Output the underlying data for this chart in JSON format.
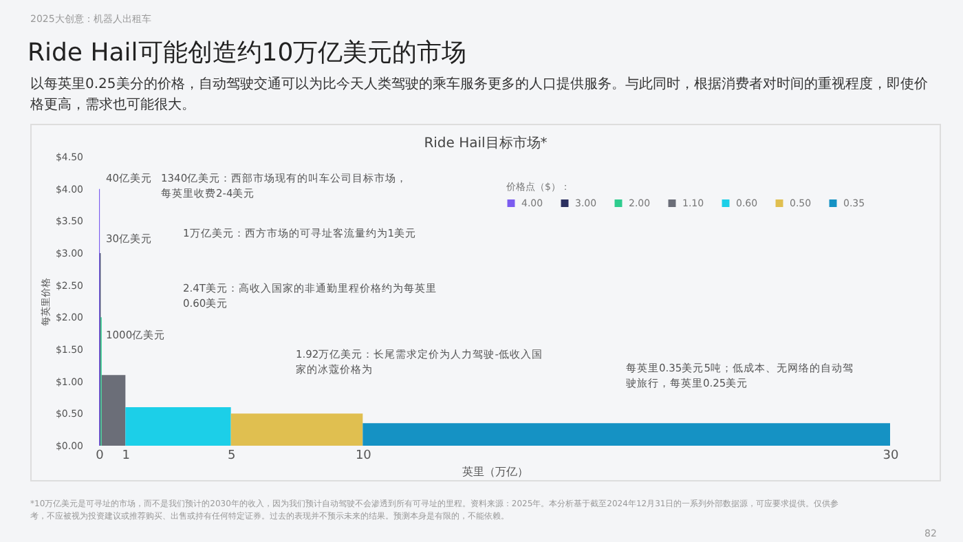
{
  "chart_data": {
    "type": "area",
    "title": "Ride Hail可能创造约10万亿美元的市场",
    "subtitle": "以每英里0.25美分的价格，自动驾驶交通可以为比今天人类驾驶的乘车服务更多的人口提供服务。与此同时，根据消费者对时间的重视程度，即使价格更高，需求也可能很大。",
    "xlabel": "英里（万亿）",
    "ylabel": "每英里价格",
    "legend_title": "价格点（$）：",
    "legend": "top right",
    "grid": false,
    "xlim": [
      0,
      30
    ],
    "xticks": [
      0,
      1,
      5,
      10,
      30
    ],
    "ylim": [
      0,
      4.5
    ],
    "yticks": [
      {
        "value": 0,
        "label": "$0.00"
      },
      {
        "value": 0.5,
        "label": "$0.50"
      },
      {
        "value": 1,
        "label": "$1.00"
      },
      {
        "value": 1.5,
        "label": "$1.50"
      },
      {
        "value": 2,
        "label": "$2.00"
      },
      {
        "value": 2.5,
        "label": "$2.50"
      },
      {
        "value": 3,
        "label": "$3.00"
      },
      {
        "value": 3.5,
        "label": "$3.50"
      },
      {
        "value": 4,
        "label": "$4.00"
      },
      {
        "value": 4.5,
        "label": "$4.50"
      }
    ],
    "series": [
      {
        "name": "4.00",
        "color": "#7b5cf0",
        "x": [
          0,
          0.03
        ],
        "values": [
          4,
          4
        ]
      },
      {
        "name": "3.00",
        "color": "#2b3060",
        "x": [
          0.03,
          0.06
        ],
        "values": [
          3,
          3
        ]
      },
      {
        "name": "2.00",
        "color": "#2ecc8e",
        "x": [
          0.06,
          0.1
        ],
        "values": [
          2,
          2
        ]
      },
      {
        "name": "1.10",
        "color": "#6b6e78",
        "x": [
          0.1,
          1
        ],
        "values": [
          1.1,
          1.1
        ]
      },
      {
        "name": "0.60",
        "color": "#1ccfe8",
        "x": [
          1,
          5
        ],
        "values": [
          0.6,
          0.6
        ]
      },
      {
        "name": "0.50",
        "color": "#e0bf50",
        "x": [
          5,
          10
        ],
        "values": [
          0.5,
          0.5
        ]
      },
      {
        "name": "0.35",
        "color": "#1592c4",
        "x": [
          10,
          30
        ],
        "values": [
          0.35,
          0.35
        ]
      }
    ],
    "annotations": [
      "2025大创意：机器人出租车",
      "Ride Hail目标市场*",
      "*10万亿美元是可寻址的市场，而不是我们预计的2030年的收入，因为我们预计自动驾驶不会渗透到所有可寻址的里程。资料来源：2025年。本分析基于截至2024年12月31日的一系列外部数据源，可应要求提供。仅供参考，不应被视为投资建议或推荐购买、出售或持有任何特定证券。过去的表现并不预示未来的结果。预测本身是有限的，不能依赖。",
      "82",
      "40亿美元",
      "30亿美元",
      "1000亿美元",
      "1340亿美元：西部市场现有的叫车公司目标市场，每英里收费2-4美元",
      "1万亿美元：西方市场的可寻址客流量约为1美元",
      "2.4T美元：高收入国家的非通勤里程价格约为每英里0.60美元",
      "1.92万亿美元：长尾需求定价为人力驾驶-低收入国家的冰蔻价格为",
      "每英里0.35美元5吨；低成本、无网络的自动驾驶旅行，每英里0.25美元"
    ]
  }
}
